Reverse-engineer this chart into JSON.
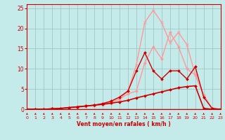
{
  "xlabel": "Vent moyen/en rafales ( km/h )",
  "xlim": [
    0,
    23
  ],
  "ylim": [
    0,
    26
  ],
  "yticks": [
    0,
    5,
    10,
    15,
    20,
    25
  ],
  "xticks": [
    0,
    1,
    2,
    3,
    4,
    5,
    6,
    7,
    8,
    9,
    10,
    11,
    12,
    13,
    14,
    15,
    16,
    17,
    18,
    19,
    20,
    21,
    22,
    23
  ],
  "bg_color": "#c5eaea",
  "grid_color": "#9bbfbf",
  "lines": [
    {
      "x": [
        0,
        1,
        2,
        3,
        4,
        5,
        6,
        7,
        8,
        9,
        10,
        11,
        12,
        13,
        14,
        15,
        16,
        17,
        18,
        19,
        20,
        21,
        22,
        23
      ],
      "y": [
        0,
        0,
        0,
        0.1,
        0.2,
        0.4,
        0.6,
        0.8,
        1.0,
        1.2,
        1.5,
        1.8,
        2.2,
        2.8,
        3.3,
        3.8,
        4.3,
        4.8,
        5.3,
        5.6,
        5.8,
        0.2,
        0,
        0
      ],
      "color": "#cc0000",
      "linewidth": 1.2,
      "marker": "D",
      "markersize": 1.8,
      "zorder": 5
    },
    {
      "x": [
        0,
        1,
        2,
        3,
        4,
        5,
        6,
        7,
        8,
        9,
        10,
        11,
        12,
        13,
        14,
        15,
        16,
        17,
        18,
        19,
        20,
        21,
        22,
        23
      ],
      "y": [
        0,
        0,
        0,
        0.1,
        0.2,
        0.4,
        0.6,
        0.8,
        1.0,
        1.4,
        2.0,
        3.0,
        4.5,
        9.5,
        14.0,
        9.5,
        7.5,
        9.5,
        9.5,
        7.5,
        10.5,
        3.0,
        0.2,
        0
      ],
      "color": "#cc0000",
      "linewidth": 1.0,
      "marker": "D",
      "markersize": 1.8,
      "zorder": 4
    },
    {
      "x": [
        0,
        1,
        2,
        3,
        4,
        5,
        6,
        7,
        8,
        9,
        10,
        11,
        12,
        13,
        14,
        15,
        16,
        17,
        18,
        19,
        20,
        21,
        22,
        23
      ],
      "y": [
        0,
        0,
        0,
        0.1,
        0.2,
        0.3,
        0.5,
        0.7,
        1.0,
        1.3,
        1.8,
        2.5,
        3.8,
        4.5,
        11.5,
        15.5,
        12.5,
        19.0,
        15.5,
        10.0,
        8.5,
        3.5,
        0.2,
        0
      ],
      "color": "#ff9999",
      "linewidth": 1.0,
      "marker": "D",
      "markersize": 1.8,
      "zorder": 3
    },
    {
      "x": [
        0,
        1,
        2,
        3,
        4,
        5,
        6,
        7,
        8,
        9,
        10,
        11,
        12,
        13,
        14,
        15,
        16,
        17,
        18,
        19,
        20,
        21,
        22,
        23
      ],
      "y": [
        0,
        0,
        0,
        0.1,
        0.2,
        0.3,
        0.5,
        0.7,
        0.9,
        1.2,
        1.6,
        2.5,
        4.5,
        11.0,
        21.5,
        24.5,
        21.5,
        16.5,
        19.0,
        16.0,
        8.5,
        3.5,
        0.2,
        0
      ],
      "color": "#ff9999",
      "linewidth": 1.0,
      "marker": "x",
      "markersize": 3.0,
      "zorder": 2
    }
  ]
}
